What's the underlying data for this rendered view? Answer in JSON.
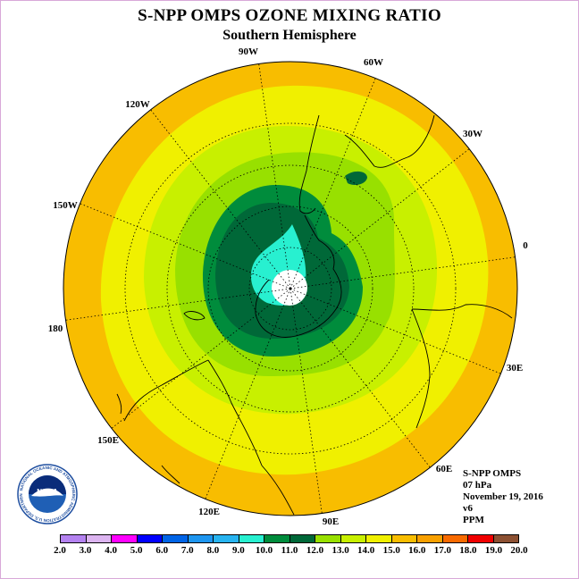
{
  "header": {
    "title": "S-NPP OMPS OZONE MIXING RATIO",
    "subtitle": "Southern Hemisphere"
  },
  "map": {
    "projection": "polar-stereographic-south",
    "longitude_labels": [
      "90W",
      "60W",
      "30W",
      "0",
      "30E",
      "60E",
      "90E",
      "120E",
      "150E",
      "180",
      "150W",
      "120W"
    ],
    "grid": true,
    "field_shape": "deep-green ozone minimum near the pole, displaced toward the Antarctic Peninsula",
    "colors": {
      "outer_band": "#f8bd00",
      "yellow_band": "#f0f000",
      "yellow_green_band": "#c8f000",
      "light_green_band": "#98e000",
      "green_band": "#008c3c",
      "dark_green_band": "#006838",
      "core": "#28f0d0",
      "center_hole": "#ffffff",
      "coastline": "#000000"
    }
  },
  "info": {
    "line1": "S-NPP OMPS",
    "line2": "07 hPa",
    "line3": "November 19, 2016",
    "line4": "v6",
    "line5": "PPM"
  },
  "legend": {
    "ticks": [
      "2.0",
      "3.0",
      "4.0",
      "5.0",
      "6.0",
      "7.0",
      "8.0",
      "9.0",
      "10.0",
      "11.0",
      "12.0",
      "13.0",
      "14.0",
      "15.0",
      "16.0",
      "17.0",
      "18.0",
      "19.0",
      "20.0"
    ],
    "colors": [
      "#b482f0",
      "#dcb4f0",
      "#ff00ff",
      "#0000ff",
      "#0064e6",
      "#1e96f0",
      "#28b4f0",
      "#28f0d0",
      "#008c3c",
      "#006838",
      "#98e000",
      "#c8f000",
      "#f0f000",
      "#f8bd00",
      "#f8a000",
      "#f86a00",
      "#f00000",
      "#8c5032"
    ]
  },
  "logo": {
    "text": "NOAA",
    "ring_text": "NATIONAL OCEANIC AND ATMOSPHERIC ADMINISTRATION U.S. DEPARTMENT OF COMMERCE"
  }
}
